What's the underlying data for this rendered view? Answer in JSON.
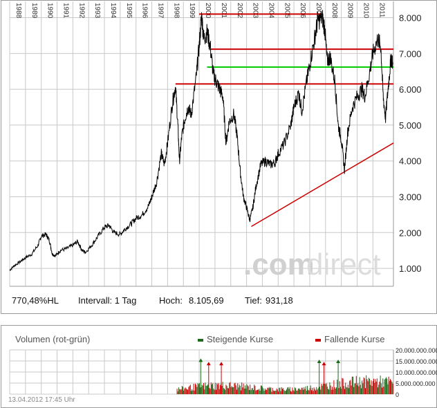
{
  "colors": {
    "price_line": "#000000",
    "resistance": "#cc0000",
    "support_green": "#00cc00",
    "rising": "#1a6b1a",
    "falling": "#cc0000",
    "grid": "#c8c8c8"
  },
  "info": {
    "performance": "770,48%HL",
    "interval": "Intervall: 1 Tag",
    "high_label": "Hoch:",
    "high_value": "8.105,69",
    "low_label": "Tief:",
    "low_value": "931,18"
  },
  "watermark": {
    "part1": ".com",
    "part2": "direct"
  },
  "volume": {
    "title": "Volumen (rot-grün)",
    "legend_rising": "Steigende Kurse",
    "legend_falling": "Fallende Kurse",
    "timestamp": "13.04.2012 17:45 Uhr",
    "ticks": [
      "20.000.000.000",
      "15.000.000.000",
      "10.000.000.000",
      "5.000.000.000",
      "0"
    ]
  },
  "chart_data": {
    "type": "line",
    "x_ticks": [
      "1988",
      "1989",
      "1990",
      "1991",
      "1992",
      "1993",
      "1994",
      "1995",
      "1996",
      "1997",
      "1998",
      "1999",
      "2000",
      "2001",
      "2002",
      "2003",
      "2004",
      "2005",
      "2006",
      "2007",
      "2008",
      "2009",
      "2010",
      "2011"
    ],
    "y_ticks": [
      "1.000",
      "2.000",
      "3.000",
      "4.000",
      "5.000",
      "6.000",
      "7.000",
      "8.000"
    ],
    "ylim": [
      500,
      8300
    ],
    "xlim": [
      1988.0,
      2012.3
    ],
    "series": [
      {
        "points": [
          [
            1988.0,
            950
          ],
          [
            1988.3,
            1080
          ],
          [
            1988.7,
            1200
          ],
          [
            1989.0,
            1300
          ],
          [
            1989.4,
            1400
          ],
          [
            1989.8,
            1650
          ],
          [
            1990.0,
            1900
          ],
          [
            1990.3,
            1950
          ],
          [
            1990.5,
            1800
          ],
          [
            1990.7,
            1400
          ],
          [
            1990.9,
            1350
          ],
          [
            1991.2,
            1500
          ],
          [
            1991.6,
            1550
          ],
          [
            1992.0,
            1650
          ],
          [
            1992.3,
            1750
          ],
          [
            1992.6,
            1500
          ],
          [
            1992.8,
            1450
          ],
          [
            1993.2,
            1650
          ],
          [
            1993.6,
            1900
          ],
          [
            1994.0,
            2150
          ],
          [
            1994.3,
            2200
          ],
          [
            1994.6,
            2000
          ],
          [
            1995.0,
            1950
          ],
          [
            1995.3,
            2100
          ],
          [
            1995.7,
            2250
          ],
          [
            1996.0,
            2400
          ],
          [
            1996.4,
            2500
          ],
          [
            1996.8,
            2750
          ],
          [
            1997.0,
            3000
          ],
          [
            1997.3,
            3400
          ],
          [
            1997.6,
            4200
          ],
          [
            1997.8,
            3900
          ],
          [
            1998.0,
            4500
          ],
          [
            1998.3,
            5600
          ],
          [
            1998.5,
            6100
          ],
          [
            1998.65,
            5000
          ],
          [
            1998.75,
            4000
          ],
          [
            1998.9,
            4700
          ],
          [
            1999.1,
            5200
          ],
          [
            1999.3,
            5500
          ],
          [
            1999.5,
            5300
          ],
          [
            1999.8,
            6300
          ],
          [
            2000.0,
            7200
          ],
          [
            2000.15,
            8050
          ],
          [
            2000.3,
            7400
          ],
          [
            2000.5,
            7600
          ],
          [
            2000.7,
            7200
          ],
          [
            2000.9,
            6400
          ],
          [
            2001.1,
            6200
          ],
          [
            2001.3,
            6000
          ],
          [
            2001.5,
            5800
          ],
          [
            2001.7,
            4500
          ],
          [
            2001.9,
            5100
          ],
          [
            2002.2,
            5300
          ],
          [
            2002.4,
            4700
          ],
          [
            2002.6,
            3700
          ],
          [
            2002.8,
            3000
          ],
          [
            2003.0,
            2700
          ],
          [
            2003.2,
            2350
          ],
          [
            2003.4,
            2700
          ],
          [
            2003.6,
            3300
          ],
          [
            2003.9,
            3900
          ],
          [
            2004.2,
            4000
          ],
          [
            2004.5,
            3900
          ],
          [
            2004.8,
            3950
          ],
          [
            2005.0,
            4200
          ],
          [
            2005.4,
            4500
          ],
          [
            2005.8,
            5000
          ],
          [
            2006.0,
            5500
          ],
          [
            2006.3,
            5900
          ],
          [
            2006.5,
            5400
          ],
          [
            2006.8,
            6200
          ],
          [
            2007.0,
            6700
          ],
          [
            2007.3,
            7400
          ],
          [
            2007.5,
            7900
          ],
          [
            2007.8,
            8000
          ],
          [
            2007.95,
            7700
          ],
          [
            2008.1,
            6800
          ],
          [
            2008.3,
            6900
          ],
          [
            2008.6,
            6200
          ],
          [
            2008.8,
            5000
          ],
          [
            2009.0,
            4600
          ],
          [
            2009.2,
            3750
          ],
          [
            2009.4,
            4800
          ],
          [
            2009.7,
            5500
          ],
          [
            2010.0,
            5800
          ],
          [
            2010.3,
            6000
          ],
          [
            2010.5,
            5800
          ],
          [
            2010.8,
            6500
          ],
          [
            2011.0,
            7000
          ],
          [
            2011.3,
            7400
          ],
          [
            2011.5,
            7200
          ],
          [
            2011.65,
            5800
          ],
          [
            2011.8,
            5200
          ],
          [
            2012.0,
            6200
          ],
          [
            2012.15,
            6900
          ],
          [
            2012.25,
            6700
          ]
        ]
      }
    ],
    "annotations": [
      {
        "type": "hline",
        "y": 8100,
        "x0": 2000.0,
        "x1": 2007.85,
        "color": "#cc0000"
      },
      {
        "type": "hline",
        "y": 7120,
        "x0": 2000.7,
        "x1": 2012.3,
        "color": "#cc0000"
      },
      {
        "type": "hline",
        "y": 6620,
        "x0": 2000.5,
        "x1": 2012.3,
        "color": "#00cc00"
      },
      {
        "type": "hline",
        "y": 6150,
        "x0": 1998.5,
        "x1": 2012.3,
        "color": "#cc0000"
      },
      {
        "type": "trend",
        "x0": 2003.3,
        "y0": 2170,
        "x1": 2012.3,
        "y1": 4500,
        "color": "#cc0000"
      }
    ],
    "volume_ylim": [
      0,
      20000000000
    ],
    "volume_start": 1998.6
  }
}
